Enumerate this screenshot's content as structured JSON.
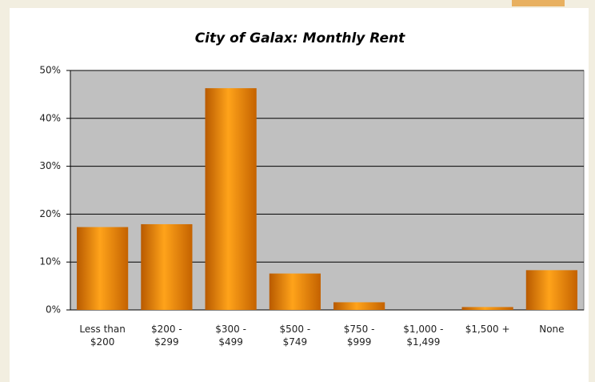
{
  "chart_data": {
    "type": "bar",
    "title": "City of Galax:  Monthly Rent",
    "categories": [
      "Less than $200",
      "$200 - $299",
      "$300 - $499",
      "$500 - $749",
      "$750 - $999",
      "$1,000 - $1,499",
      "$1,500 +",
      "None"
    ],
    "values": [
      17.3,
      17.9,
      46.3,
      7.6,
      1.6,
      0,
      0.6,
      8.3
    ],
    "color": "#f08c00",
    "ylim": [
      0,
      50
    ],
    "yticks": [
      {
        "value": 0,
        "label": "0%"
      },
      {
        "value": 10,
        "label": "10%"
      },
      {
        "value": 20,
        "label": "20%"
      },
      {
        "value": 30,
        "label": "30%"
      },
      {
        "value": 40,
        "label": "40%"
      },
      {
        "value": 50,
        "label": "50%"
      }
    ],
    "grid": true
  }
}
